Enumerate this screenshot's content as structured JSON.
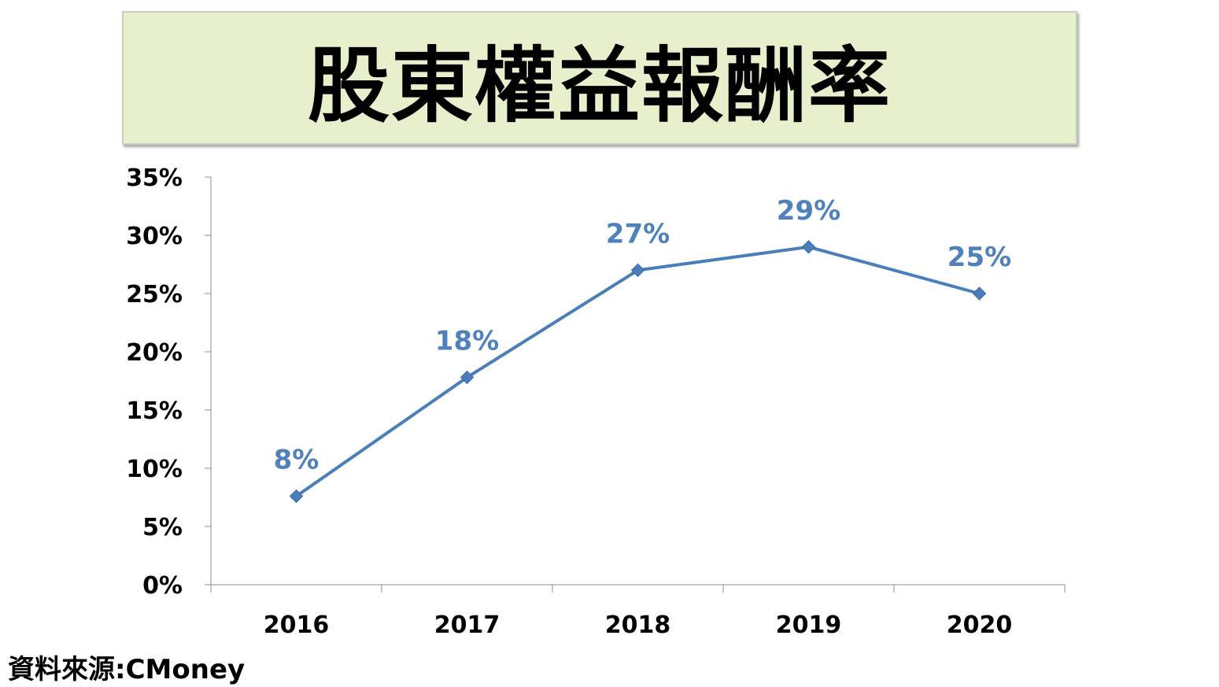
{
  "chart_data": {
    "type": "line",
    "title": "股東權益報酬率",
    "categories": [
      "2016",
      "2017",
      "2018",
      "2019",
      "2020"
    ],
    "values": [
      7.6,
      17.8,
      27.0,
      29.0,
      25.0
    ],
    "data_labels": [
      "8%",
      "18%",
      "27%",
      "29%",
      "25%"
    ],
    "y_ticks": [
      "0%",
      "5%",
      "10%",
      "15%",
      "20%",
      "25%",
      "30%",
      "35%"
    ],
    "ylim": [
      0,
      35
    ],
    "grid": false,
    "line_color": "#4a7ebb",
    "label_color": "#4f81bd",
    "marker": "diamond"
  },
  "source": "資料來源:CMoney"
}
